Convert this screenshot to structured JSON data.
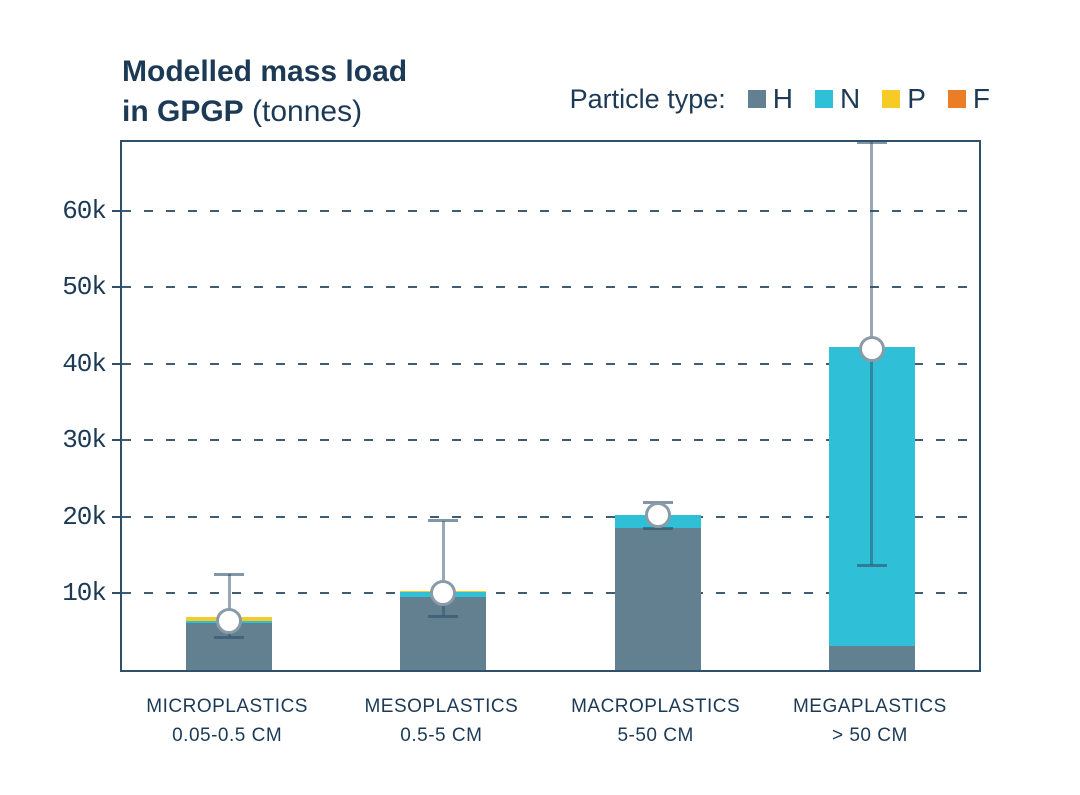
{
  "page": {
    "background": "#ffffff",
    "text_color": "#1C3A56"
  },
  "header": {
    "title_line1": "Modelled mass load",
    "title_line2_bold": "in GPGP",
    "title_line2_regular": " (tonnes)"
  },
  "legend": {
    "label": "Particle type:",
    "entries": [
      {
        "key": "H",
        "color": "#62808F"
      },
      {
        "key": "N",
        "color": "#2FC0D8"
      },
      {
        "key": "P",
        "color": "#F6CB25"
      },
      {
        "key": "F",
        "color": "#EB7D26"
      }
    ]
  },
  "chart_data": {
    "type": "bar",
    "stacked": true,
    "title": "Modelled mass load in GPGP (tonnes)",
    "unit": "tonnes",
    "legend_title": "Particle type:",
    "legend_position": "top-right",
    "grid": "dashed-horizontal",
    "categories": [
      {
        "label": "MICROPLASTICS",
        "sublabel": "0.05-0.5 CM"
      },
      {
        "label": "MESOPLASTICS",
        "sublabel": "0.5-5 CM"
      },
      {
        "label": "MACROPLASTICS",
        "sublabel": "5-50 CM"
      },
      {
        "label": "MEGAPLASTICS",
        "sublabel": "> 50 CM"
      }
    ],
    "series": [
      {
        "name": "H",
        "color": "#62808F",
        "values": [
          6100,
          9500,
          18600,
          3200
        ]
      },
      {
        "name": "N",
        "color": "#2FC0D8",
        "values": [
          250,
          650,
          1600,
          39000
        ]
      },
      {
        "name": "P",
        "color": "#F6CB25",
        "values": [
          550,
          200,
          0,
          0
        ]
      },
      {
        "name": "F",
        "color": "#EB7D26",
        "values": [
          0,
          0,
          0,
          0
        ]
      }
    ],
    "totals": [
      6900,
      10350,
      20200,
      42200
    ],
    "error_bars": {
      "low": [
        4250,
        7000,
        18500,
        13700
      ],
      "mid": [
        6350,
        10000,
        20200,
        41900
      ],
      "high": [
        12500,
        19500,
        21900,
        69000
      ]
    },
    "ylim": [
      0,
      69000
    ],
    "yticks": [
      {
        "value": 10000,
        "label": "10k"
      },
      {
        "value": 20000,
        "label": "20k"
      },
      {
        "value": 30000,
        "label": "30k"
      },
      {
        "value": 40000,
        "label": "40k"
      },
      {
        "value": 50000,
        "label": "50k"
      },
      {
        "value": 60000,
        "label": "60k"
      }
    ]
  }
}
